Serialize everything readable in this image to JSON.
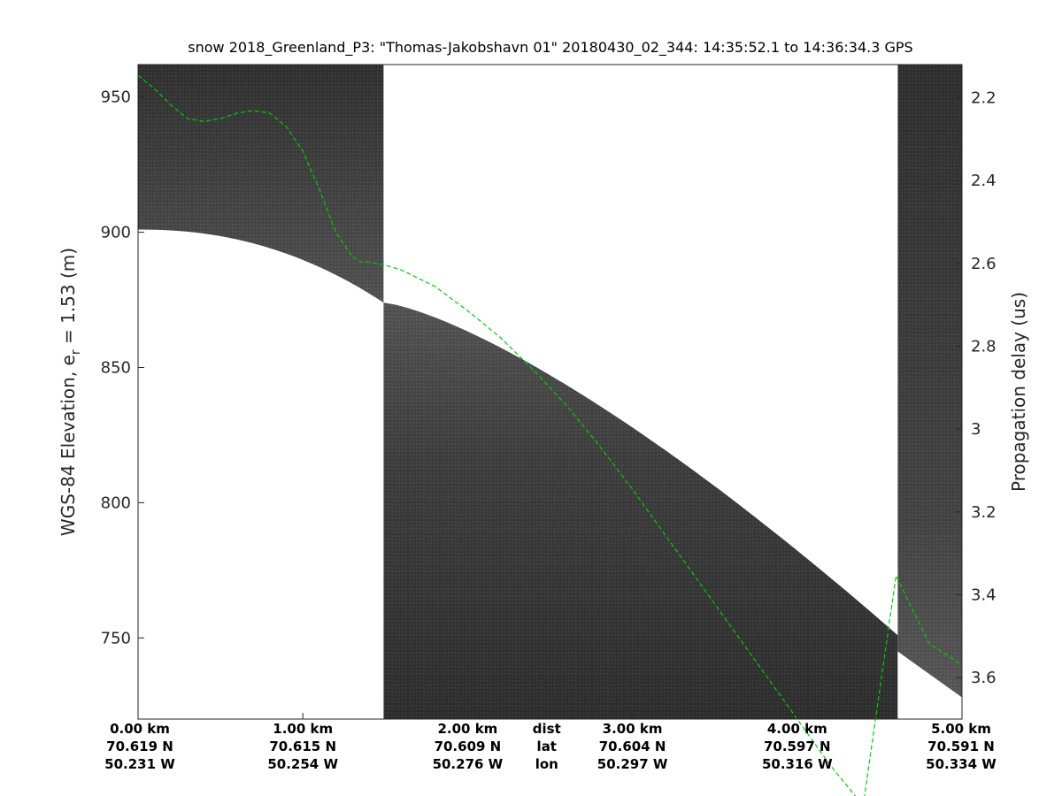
{
  "chart_data": {
    "type": "line",
    "title": "snow 2018_Greenland_P3: \"Thomas-Jakobshavn 01\"  20180430_02_344: 14:35:52.1 to 14:36:34.3 GPS",
    "ylabel_left_main": "WGS-84 Elevation, e",
    "ylabel_left_sub": "r",
    "ylabel_left_tail": " = 1.53 (m)",
    "ylabel_right": "Propagation delay (us)",
    "xlim": [
      0.0,
      5.0
    ],
    "ylim": [
      720,
      962
    ],
    "y2lim": [
      3.7,
      2.12
    ],
    "y2_reversed": true,
    "grid": false,
    "colors": {
      "surface_line": "#00cc00",
      "radar_dark": "#333333",
      "radar_mid": "#6a6a6a",
      "gap": "#ffffff"
    },
    "yticks": [
      {
        "v": 750,
        "label": "750"
      },
      {
        "v": 800,
        "label": "800"
      },
      {
        "v": 850,
        "label": "850"
      },
      {
        "v": 900,
        "label": "900"
      },
      {
        "v": 950,
        "label": "950"
      }
    ],
    "y2ticks": [
      {
        "v": 2.2,
        "label": "2.2"
      },
      {
        "v": 2.4,
        "label": "2.4"
      },
      {
        "v": 2.6,
        "label": "2.6"
      },
      {
        "v": 2.8,
        "label": "2.8"
      },
      {
        "v": 3.0,
        "label": "3"
      },
      {
        "v": 3.2,
        "label": "3.2"
      },
      {
        "v": 3.4,
        "label": "3.4"
      },
      {
        "v": 3.6,
        "label": "3.6"
      }
    ],
    "xticks": [
      {
        "v": 0.0,
        "dist": "0.00 km",
        "lat": "70.619 N",
        "lon": "50.231 W"
      },
      {
        "v": 1.0,
        "dist": "1.00 km",
        "lat": "70.615 N",
        "lon": "50.254 W"
      },
      {
        "v": 2.0,
        "dist": "2.00 km",
        "lat": "70.609 N",
        "lon": "50.276 W"
      },
      {
        "v": 3.0,
        "dist": "3.00 km",
        "lat": "70.604 N",
        "lon": "50.297 W"
      },
      {
        "v": 4.0,
        "dist": "4.00 km",
        "lat": "70.597 N",
        "lon": "50.316 W"
      },
      {
        "v": 5.0,
        "dist": "5.00 km",
        "lat": "70.591 N",
        "lon": "50.334 W"
      }
    ],
    "xrow_labels": {
      "x": 2.48,
      "dist": "dist",
      "lat": "lat",
      "lon": "lon"
    },
    "data_gaps": [
      {
        "x_start": 1.49,
        "x_end": 4.61,
        "y_top": 962,
        "y_bottom_start": 874,
        "y_bottom_end": 751
      },
      {
        "x_start": 0.0,
        "x_end": 1.49,
        "y_top_start": 901,
        "y_top_end": 874,
        "y_bottom": 720
      }
    ],
    "series": [
      {
        "style": "dashed",
        "x": [
          0.0,
          0.1,
          0.2,
          0.3,
          0.4,
          0.5,
          0.6,
          0.7,
          0.8,
          0.9,
          1.0,
          1.1,
          1.2,
          1.3,
          1.35,
          1.4,
          1.49,
          1.6,
          1.8,
          2.0,
          2.2,
          2.4,
          2.6,
          2.8,
          3.0,
          3.2,
          3.4,
          3.6,
          3.8,
          4.0,
          4.2,
          4.4,
          4.6,
          4.8,
          5.0
        ],
        "y": [
          958,
          953,
          947,
          942,
          941,
          942,
          944,
          945,
          944,
          939,
          930,
          916,
          900,
          891,
          889,
          889,
          888,
          886,
          880,
          871,
          861,
          849,
          836,
          821,
          805,
          788,
          771,
          754,
          737,
          720,
          703,
          688,
          773,
          748,
          740
        ]
      }
    ]
  }
}
